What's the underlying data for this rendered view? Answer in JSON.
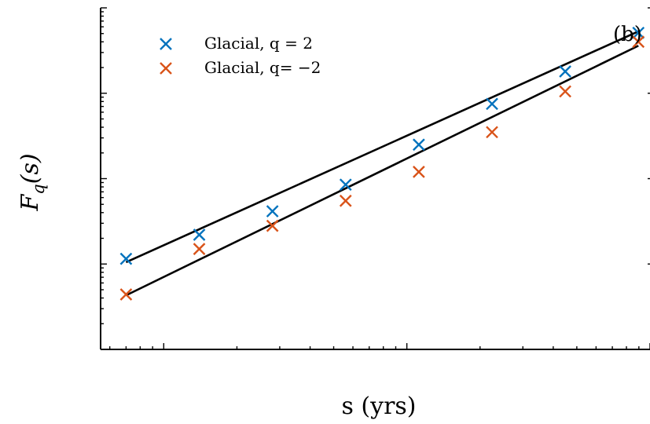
{
  "chart_data": {
    "type": "scatter",
    "panel_label": "(b)",
    "xlabel": "s (yrs)",
    "ylabel": "F_q(s)",
    "xscale": "log",
    "yscale": "log",
    "xlim": [
      5.5,
      1000
    ],
    "ylim": [
      0.0001,
      1
    ],
    "grid": false,
    "legend_position": "top-left",
    "series": [
      {
        "name": "Glacial, q = 2",
        "color": "#0072BD",
        "marker": "x",
        "x": [
          7,
          14,
          28,
          56,
          112,
          224,
          448,
          896
        ],
        "y": [
          0.00115,
          0.0022,
          0.00415,
          0.0085,
          0.025,
          0.075,
          0.18,
          0.51
        ]
      },
      {
        "name": "Glacial, q= −2",
        "color": "#D95319",
        "marker": "x",
        "x": [
          7,
          14,
          28,
          56,
          112,
          224,
          448,
          896
        ],
        "y": [
          0.00044,
          0.0015,
          0.0028,
          0.0055,
          0.012,
          0.035,
          0.105,
          0.4
        ]
      }
    ],
    "fits": [
      {
        "color": "#000000",
        "x": [
          7,
          896
        ],
        "y": [
          0.00105,
          0.53
        ]
      },
      {
        "color": "#000000",
        "x": [
          7,
          896
        ],
        "y": [
          0.00043,
          0.36
        ]
      }
    ]
  }
}
